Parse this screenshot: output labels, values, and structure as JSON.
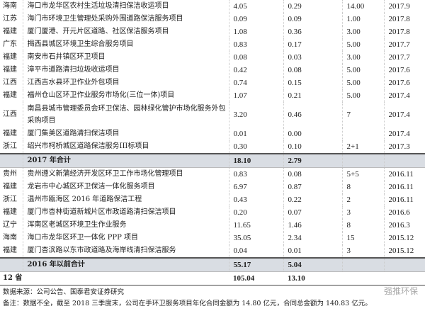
{
  "rows": [
    {
      "prov": "海南",
      "name": "海口市龙华区农村生活垃圾清扫保洁收运项目",
      "total": "4.05",
      "annual": "0.29",
      "years": "14.00",
      "date": "2017.9"
    },
    {
      "prov": "江苏",
      "name": "海门市环境卫生管理处采购外围道路保洁服务项目",
      "total": "0.09",
      "annual": "0.09",
      "years": "1.00",
      "date": "2017.8"
    },
    {
      "prov": "福建",
      "name": "厦门厦港、开元片区道路、社区保洁服务项目",
      "total": "1.08",
      "annual": "0.36",
      "years": "3.00",
      "date": "2017.8"
    },
    {
      "prov": "广东",
      "name": "揭西县城区环境卫生综合服务项目",
      "total": "0.83",
      "annual": "0.17",
      "years": "5.00",
      "date": "2017.7"
    },
    {
      "prov": "福建",
      "name": "南安市石井镇区环卫项目",
      "total": "0.08",
      "annual": "0.03",
      "years": "3.00",
      "date": "2017.7"
    },
    {
      "prov": "福建",
      "name": "漳平市道路清扫垃圾收运项目",
      "total": "0.42",
      "annual": "0.08",
      "years": "5.00",
      "date": "2017.6"
    },
    {
      "prov": "江西",
      "name": "江西吉水县环卫作业外包项目",
      "total": "0.74",
      "annual": "0.15",
      "years": "5.00",
      "date": "2017.6"
    },
    {
      "prov": "福建",
      "name": "福州仓山区环卫作业服务市场化(三位一体)项目",
      "total": "1.07",
      "annual": "0.21",
      "years": "5.00",
      "date": "2017.4"
    },
    {
      "prov": "江西",
      "name": "南昌县城市管理委员会环卫保洁、园林绿化管护市场化服务外包采购项目",
      "total": "3.20",
      "annual": "0.46",
      "years": "7",
      "date": "2017.4"
    },
    {
      "prov": "福建",
      "name": "厦门集美区道路清扫保洁项目",
      "total": "0.01",
      "annual": "0.00",
      "years": "",
      "date": "2017.4"
    },
    {
      "prov": "浙江",
      "name": "绍兴市柯桥城区道路保洁服务III标项目",
      "total": "0.30",
      "annual": "0.10",
      "years": "2+1",
      "date": "2017.3"
    }
  ],
  "sum2017": {
    "label": "2017 年合计",
    "total": "18.10",
    "annual": "2.79"
  },
  "rows2": [
    {
      "prov": "贵州",
      "name": "贵州遵义新蒲经济开发区环卫工作市场化管理项目",
      "total": "0.83",
      "annual": "0.08",
      "years": "5+5",
      "date": "2016.11"
    },
    {
      "prov": "福建",
      "name": "龙岩市中心城区环卫保洁一体化服务项目",
      "total": "6.97",
      "annual": "0.87",
      "years": "8",
      "date": "2016.11"
    },
    {
      "prov": "浙江",
      "name": "温州市瓯海区 2016 年道路保洁工程",
      "total": "0.43",
      "annual": "0.22",
      "years": "2",
      "date": "2016.11"
    },
    {
      "prov": "福建",
      "name": "厦门市杏林街道新城片区市政道路清扫保洁项目",
      "total": "0.20",
      "annual": "0.07",
      "years": "3",
      "date": "2016.6"
    },
    {
      "prov": "辽宁",
      "name": "浑南区老城区环境卫生作业服务",
      "total": "11.65",
      "annual": "1.46",
      "years": "8",
      "date": "2016.3"
    },
    {
      "prov": "海南",
      "name": "海口市龙华区环卫一体化 PPP 项目",
      "total": "35.05",
      "annual": "2.34",
      "years": "15",
      "date": "2015.12"
    },
    {
      "prov": "福建",
      "name": "厦门杏滨路以东市政道路及海岸线清扫保洁服务",
      "total": "0.04",
      "annual": "0.01",
      "years": "3",
      "date": "2015.12"
    }
  ],
  "sum2016": {
    "label": "2016 年以前合计",
    "total": "55.17",
    "annual": "5.04"
  },
  "grand": {
    "label": "12 省",
    "total": "105.04",
    "annual": "13.10"
  },
  "source": "数据来源：公司公告、国泰君安证券研究",
  "note": "备注：数据不全，截至 2018 三季度末，公司在手环卫服务项目年化合同金额为 14.80 亿元，合同总金额为 140.83 亿元。",
  "watermark": "强推环保"
}
